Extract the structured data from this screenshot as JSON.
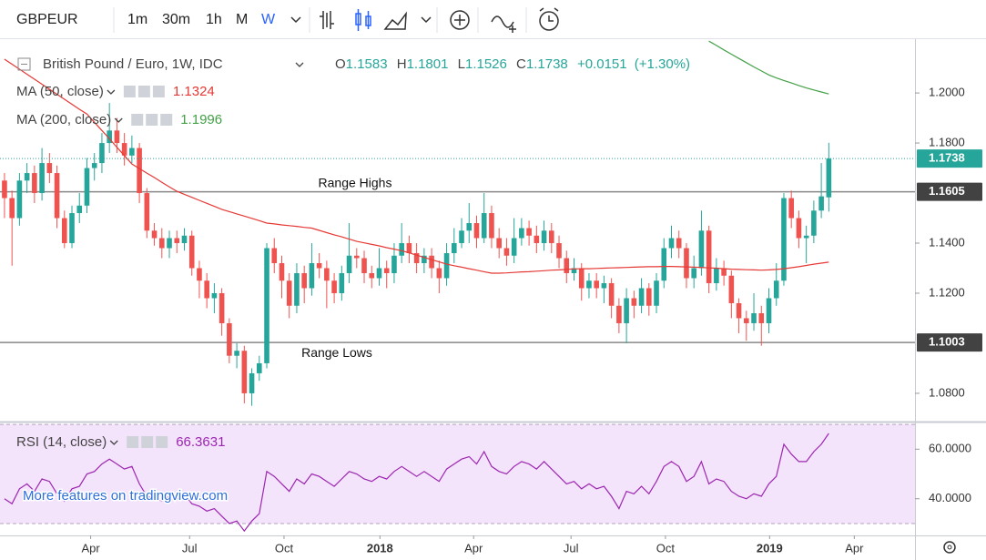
{
  "chart_data": {
    "type": "candlestick",
    "title": "GBPEUR",
    "subtitle": "British Pound / Euro, 1W, IDC",
    "intervals": [
      "1m",
      "30m",
      "1h",
      "M",
      "W"
    ],
    "ohlc_labels": [
      "O",
      "H",
      "L",
      "C"
    ],
    "change_label": "+0.0151",
    "change_pct_label": "(+1.30%)",
    "xlim": [
      -0.6,
      121.5
    ],
    "ylim": [
      1.0687,
      1.2215
    ],
    "yticks": [
      {
        "value": 1.08,
        "label": "1.0800"
      },
      {
        "value": 1.12,
        "label": "1.1200"
      },
      {
        "value": 1.14,
        "label": "1.1400"
      },
      {
        "value": 1.18,
        "label": "1.1800"
      },
      {
        "value": 1.2,
        "label": "1.2000"
      }
    ],
    "xticks": [
      {
        "value": 11.5,
        "label": "Apr"
      },
      {
        "value": 24.7,
        "label": "Jul"
      },
      {
        "value": 37.3,
        "label": "Oct"
      },
      {
        "value": 50.1,
        "label": "2018"
      },
      {
        "value": 62.6,
        "label": "Apr"
      },
      {
        "value": 75.6,
        "label": "Jul"
      },
      {
        "value": 88.2,
        "label": "Oct"
      },
      {
        "value": 102.1,
        "label": "2019"
      },
      {
        "value": 113.4,
        "label": "Apr"
      }
    ],
    "up_color": "#26a69a",
    "down_color": "#ef5350",
    "open": [
      1.165,
      1.158,
      1.15,
      1.165,
      1.168,
      1.16,
      1.172,
      1.168,
      1.15,
      1.14,
      1.152,
      1.155,
      1.17,
      1.172,
      1.18,
      1.185,
      1.18,
      1.175,
      1.178,
      1.16,
      1.145,
      1.142,
      1.138,
      1.142,
      1.14,
      1.143,
      1.13,
      1.125,
      1.118,
      1.12,
      1.108,
      1.095,
      1.097,
      1.08,
      1.088,
      1.092,
      1.138,
      1.132,
      1.125,
      1.115,
      1.128,
      1.122,
      1.132,
      1.13,
      1.125,
      1.12,
      1.128,
      1.135,
      1.134,
      1.128,
      1.126,
      1.13,
      1.128,
      1.135,
      1.14,
      1.136,
      1.132,
      1.135,
      1.13,
      1.126,
      1.136,
      1.14,
      1.145,
      1.148,
      1.142,
      1.152,
      1.142,
      1.138,
      1.135,
      1.142,
      1.146,
      1.143,
      1.14,
      1.145,
      1.14,
      1.134,
      1.128,
      1.13,
      1.122,
      1.125,
      1.122,
      1.124,
      1.115,
      1.108,
      1.118,
      1.115,
      1.122,
      1.115,
      1.125,
      1.138,
      1.142,
      1.138,
      1.126,
      1.13,
      1.145,
      1.124,
      1.13,
      1.127,
      1.116,
      1.11,
      1.108,
      1.112,
      1.108,
      1.118,
      1.125,
      1.158,
      1.15,
      1.142,
      1.143,
      1.153,
      1.1583
    ],
    "high": [
      1.168,
      1.161,
      1.168,
      1.172,
      1.171,
      1.178,
      1.176,
      1.171,
      1.153,
      1.155,
      1.16,
      1.174,
      1.176,
      1.184,
      1.196,
      1.19,
      1.184,
      1.183,
      1.18,
      1.162,
      1.148,
      1.146,
      1.145,
      1.145,
      1.146,
      1.145,
      1.133,
      1.128,
      1.124,
      1.122,
      1.11,
      1.1,
      1.099,
      1.09,
      1.095,
      1.14,
      1.142,
      1.135,
      1.128,
      1.132,
      1.131,
      1.14,
      1.136,
      1.133,
      1.128,
      1.131,
      1.148,
      1.138,
      1.137,
      1.131,
      1.138,
      1.133,
      1.14,
      1.148,
      1.143,
      1.14,
      1.138,
      1.138,
      1.133,
      1.14,
      1.146,
      1.15,
      1.156,
      1.151,
      1.16,
      1.155,
      1.146,
      1.142,
      1.15,
      1.15,
      1.149,
      1.147,
      1.149,
      1.148,
      1.143,
      1.137,
      1.134,
      1.132,
      1.128,
      1.128,
      1.127,
      1.126,
      1.118,
      1.122,
      1.121,
      1.126,
      1.124,
      1.128,
      1.142,
      1.147,
      1.145,
      1.14,
      1.135,
      1.153,
      1.147,
      1.134,
      1.133,
      1.129,
      1.118,
      1.113,
      1.12,
      1.115,
      1.122,
      1.132,
      1.16,
      1.161,
      1.153,
      1.147,
      1.157,
      1.172,
      1.1801
    ],
    "low": [
      1.15,
      1.131,
      1.147,
      1.16,
      1.156,
      1.157,
      1.164,
      1.146,
      1.138,
      1.138,
      1.148,
      1.152,
      1.165,
      1.168,
      1.176,
      1.176,
      1.171,
      1.172,
      1.156,
      1.142,
      1.139,
      1.134,
      1.134,
      1.136,
      1.137,
      1.127,
      1.118,
      1.114,
      1.112,
      1.103,
      1.092,
      1.09,
      1.076,
      1.075,
      1.085,
      1.09,
      1.128,
      1.118,
      1.11,
      1.112,
      1.116,
      1.119,
      1.126,
      1.114,
      1.116,
      1.117,
      1.124,
      1.13,
      1.124,
      1.122,
      1.123,
      1.122,
      1.124,
      1.132,
      1.132,
      1.128,
      1.128,
      1.126,
      1.12,
      1.123,
      1.132,
      1.138,
      1.14,
      1.138,
      1.14,
      1.138,
      1.134,
      1.131,
      1.132,
      1.139,
      1.139,
      1.136,
      1.137,
      1.136,
      1.13,
      1.124,
      1.125,
      1.117,
      1.118,
      1.118,
      1.116,
      1.11,
      1.104,
      1.1,
      1.11,
      1.112,
      1.111,
      1.112,
      1.122,
      1.134,
      1.134,
      1.122,
      1.122,
      1.127,
      1.12,
      1.121,
      1.123,
      1.11,
      1.104,
      1.101,
      1.105,
      1.099,
      1.104,
      1.115,
      1.123,
      1.146,
      1.138,
      1.132,
      1.14,
      1.15,
      1.1526
    ],
    "close": [
      1.158,
      1.15,
      1.165,
      1.168,
      1.16,
      1.172,
      1.168,
      1.15,
      1.14,
      1.152,
      1.155,
      1.17,
      1.172,
      1.18,
      1.185,
      1.18,
      1.175,
      1.178,
      1.16,
      1.145,
      1.142,
      1.138,
      1.142,
      1.14,
      1.143,
      1.13,
      1.125,
      1.118,
      1.12,
      1.108,
      1.095,
      1.097,
      1.08,
      1.088,
      1.092,
      1.138,
      1.132,
      1.125,
      1.115,
      1.128,
      1.122,
      1.132,
      1.13,
      1.125,
      1.12,
      1.128,
      1.135,
      1.134,
      1.128,
      1.126,
      1.13,
      1.128,
      1.135,
      1.14,
      1.136,
      1.132,
      1.135,
      1.13,
      1.126,
      1.136,
      1.14,
      1.145,
      1.148,
      1.142,
      1.152,
      1.142,
      1.138,
      1.135,
      1.142,
      1.146,
      1.143,
      1.14,
      1.145,
      1.14,
      1.134,
      1.128,
      1.13,
      1.122,
      1.125,
      1.122,
      1.124,
      1.115,
      1.108,
      1.118,
      1.115,
      1.122,
      1.115,
      1.125,
      1.138,
      1.142,
      1.138,
      1.126,
      1.13,
      1.145,
      1.124,
      1.13,
      1.127,
      1.116,
      1.11,
      1.108,
      1.112,
      1.108,
      1.118,
      1.125,
      1.158,
      1.15,
      1.142,
      1.143,
      1.153,
      1.1587,
      1.1738
    ],
    "series": [
      {
        "name": "MA (50, close)",
        "color": "#e53935",
        "values": [
          1.2135,
          1.2115,
          1.2095,
          1.2075,
          1.2055,
          1.2035,
          1.2015,
          1.1995,
          1.1975,
          1.1955,
          1.1935,
          1.1916,
          1.1883,
          1.185,
          1.1817,
          1.1783,
          1.175,
          1.1716,
          1.1698,
          1.168,
          1.1662,
          1.1643,
          1.1625,
          1.1607,
          1.1595,
          1.1583,
          1.1571,
          1.1559,
          1.1547,
          1.1535,
          1.1526,
          1.1517,
          1.1508,
          1.1499,
          1.149,
          1.148,
          1.1477,
          1.1473,
          1.147,
          1.1467,
          1.1463,
          1.146,
          1.1451,
          1.1442,
          1.1433,
          1.1425,
          1.1416,
          1.1407,
          1.1401,
          1.1395,
          1.1389,
          1.1382,
          1.1376,
          1.137,
          1.1361,
          1.1352,
          1.1343,
          1.1334,
          1.1325,
          1.1316,
          1.131,
          1.1304,
          1.1298,
          1.1292,
          1.1286,
          1.128,
          1.128,
          1.1281,
          1.1283,
          1.1285,
          1.1286,
          1.1288,
          1.129,
          1.1292,
          1.1293,
          1.1295,
          1.1297,
          1.1298,
          1.1298,
          1.1299,
          1.13,
          1.1301,
          1.1302,
          1.1303,
          1.1304,
          1.1305,
          1.1306,
          1.1306,
          1.1307,
          1.1307,
          1.1306,
          1.1305,
          1.1304,
          1.1303,
          1.1301,
          1.13,
          1.1298,
          1.1296,
          1.1295,
          1.1294,
          1.1293,
          1.1292,
          1.1293,
          1.1295,
          1.1298,
          1.1302,
          1.1306,
          1.1311,
          1.1316,
          1.132,
          1.1324
        ]
      },
      {
        "name": "MA (200, close)",
        "color": "#43a047",
        "values": [
          null,
          null,
          null,
          null,
          null,
          null,
          null,
          null,
          null,
          null,
          null,
          null,
          null,
          null,
          null,
          null,
          null,
          null,
          null,
          null,
          null,
          null,
          null,
          null,
          null,
          null,
          null,
          null,
          null,
          null,
          null,
          null,
          null,
          null,
          null,
          null,
          null,
          null,
          null,
          null,
          null,
          null,
          null,
          null,
          null,
          null,
          null,
          null,
          null,
          null,
          null,
          null,
          null,
          null,
          null,
          null,
          null,
          null,
          null,
          null,
          null,
          null,
          null,
          null,
          null,
          null,
          null,
          null,
          null,
          null,
          null,
          null,
          null,
          null,
          null,
          null,
          null,
          null,
          null,
          null,
          null,
          null,
          null,
          null,
          null,
          null,
          null,
          null,
          null,
          null,
          null,
          null,
          null,
          null,
          1.2207,
          1.219,
          1.2172,
          1.2155,
          1.2138,
          1.2121,
          1.2104,
          1.2088,
          1.2072,
          1.206,
          1.205,
          1.204,
          1.203,
          1.202,
          1.2012,
          1.2004,
          1.1996
        ]
      }
    ],
    "levels": [
      {
        "value": 1.1605,
        "label": "Range Highs"
      },
      {
        "value": 1.1003,
        "label": "Range Lows"
      }
    ],
    "rsi": {
      "name": "RSI (14, close)",
      "color": "#9c27b0",
      "ylim": [
        25.2,
        70.4
      ],
      "yticks": [
        {
          "value": 60,
          "label": "60.0000"
        },
        {
          "value": 40,
          "label": "40.0000"
        }
      ],
      "band": [
        30,
        70
      ],
      "values": [
        40,
        38,
        44,
        46,
        43,
        48,
        47,
        42,
        39,
        44,
        45,
        50,
        51,
        54,
        56,
        54,
        52,
        53,
        46,
        41,
        40,
        39,
        41,
        40,
        42,
        38,
        37,
        35,
        36,
        33,
        30,
        31,
        27,
        31,
        34,
        51,
        49,
        46,
        43,
        48,
        46,
        50,
        49,
        47,
        45,
        48,
        51,
        50,
        48,
        47,
        49,
        48,
        51,
        53,
        51,
        49,
        51,
        49,
        47,
        52,
        54,
        56,
        57,
        54,
        59,
        53,
        51,
        50,
        53,
        55,
        54,
        52,
        55,
        52,
        49,
        46,
        47,
        44,
        46,
        44,
        45,
        41,
        36,
        43,
        42,
        45,
        42,
        47,
        53,
        55,
        53,
        47,
        49,
        55,
        46,
        48,
        47,
        43,
        41,
        40,
        42,
        41,
        46,
        49,
        62,
        58,
        55,
        55,
        59,
        62,
        66.3631
      ]
    },
    "watermark": "More features on tradingview.com"
  }
}
